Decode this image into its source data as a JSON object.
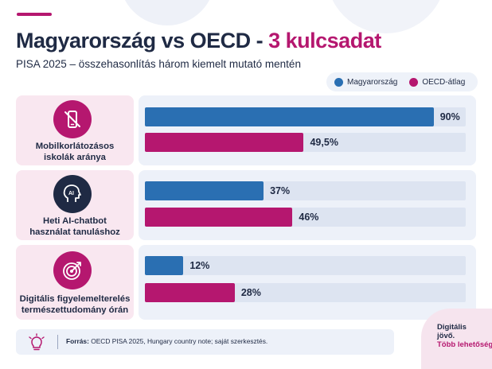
{
  "header": {
    "title_main": "Magyarország vs OECD -",
    "title_accent": "3 kulcsadat",
    "subtitle": "PISA 2025 – összehasonlítás három kiemelt mutató mentén"
  },
  "colors": {
    "hungary": "#2a6fb2",
    "oecd": "#b5176f",
    "navy": "#1f2a44",
    "track": "#dde4f1"
  },
  "chart_data": {
    "type": "bar",
    "orientation": "horizontal",
    "title": "Magyarország vs OECD - 3 kulcsadat",
    "subtitle": "PISA 2025 – összehasonlítás három kiemelt mutató mentén",
    "xlim": [
      0,
      100
    ],
    "legend": "top-right",
    "series_names": [
      "Magyarország",
      "OECD-átlag"
    ],
    "categories": [
      {
        "label_line1": "Mobilkorlátozásos",
        "label_line2": "iskolák aránya",
        "icon": "phone-slash-icon",
        "hu": 90,
        "hu_label": "90%",
        "oecd": 49.5,
        "oecd_label": "49,5%"
      },
      {
        "label_line1": "Heti AI-chatbot",
        "label_line2": "használat tanuláshoz",
        "icon": "ai-head-icon",
        "hu": 37,
        "hu_label": "37%",
        "oecd": 46,
        "oecd_label": "46%"
      },
      {
        "label_line1": "Digitális figyelemelterelés",
        "label_line2": "természettudomány órán",
        "icon": "target-icon",
        "hu": 12,
        "hu_label": "12%",
        "oecd": 28,
        "oecd_label": "28%"
      }
    ]
  },
  "footer": {
    "source_label": "Forrás:",
    "source_text": "OECD PISA 2025, Hungary country note; saját szerkesztés.",
    "icon": "lightbulb-icon"
  },
  "brand": {
    "line1": "Digitális",
    "line2": "jövő.",
    "line3": "Több lehetőség."
  }
}
